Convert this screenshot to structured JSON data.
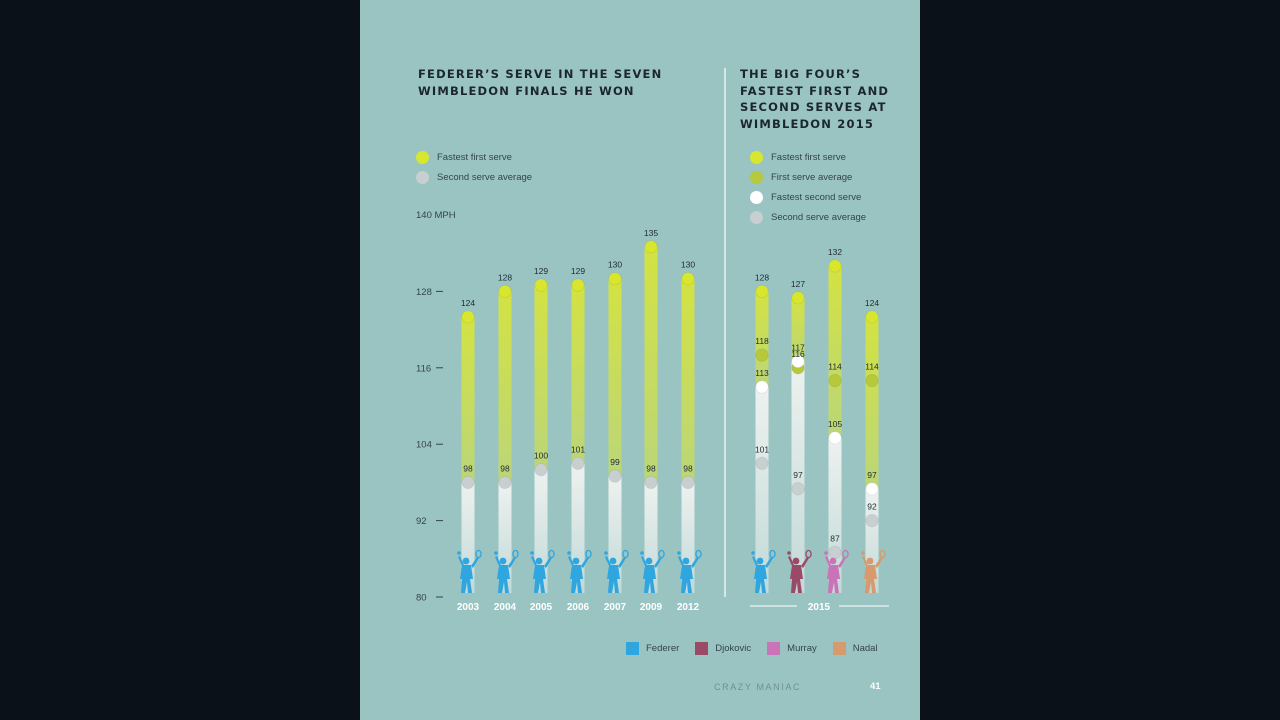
{
  "title_left": "FEDERER’S SERVE IN THE SEVEN\nWIMBLEDON FINALS HE WON",
  "title_right": "THE BIG FOUR’S\nFASTEST FIRST AND\nSECOND SERVES AT\nWIMBLEDON 2015",
  "legend_left": [
    {
      "label": "Fastest first serve",
      "color": "#d8e62e"
    },
    {
      "label": "Second serve average",
      "color": "#c8cfd0"
    }
  ],
  "legend_right": [
    {
      "label": "Fastest first serve",
      "color": "#d8e62e"
    },
    {
      "label": "First serve average",
      "color": "#b5c93a"
    },
    {
      "label": "Fastest second serve",
      "color": "#ffffff"
    },
    {
      "label": "Second serve average",
      "color": "#c8cfd0"
    }
  ],
  "unit_label": "140 MPH",
  "players": [
    {
      "name": "Federer",
      "color": "#2fa6e0"
    },
    {
      "name": "Djokovic",
      "color": "#9a4a66"
    },
    {
      "name": "Murray",
      "color": "#c874b6"
    },
    {
      "name": "Nadal",
      "color": "#d69a6e"
    }
  ],
  "footer": {
    "brand": "CRAZY MANIAC",
    "page": "41"
  },
  "chart_data": [
    {
      "type": "bar",
      "title": "FEDERER’S SERVE IN THE SEVEN WIMBLEDON FINALS HE WON",
      "ylabel": "140 MPH",
      "ylim": [
        80,
        140
      ],
      "yticks": [
        80,
        92,
        104,
        116,
        128
      ],
      "categories": [
        "2003",
        "2004",
        "2005",
        "2006",
        "2007",
        "2009",
        "2012"
      ],
      "series": [
        {
          "name": "Fastest first serve",
          "values": [
            124,
            128,
            129,
            129,
            130,
            135,
            130
          ]
        },
        {
          "name": "Second serve average",
          "values": [
            98,
            98,
            100,
            101,
            99,
            98,
            98
          ]
        }
      ]
    },
    {
      "type": "bar",
      "title": "THE BIG FOUR’S FASTEST FIRST AND SECOND SERVES AT WIMBLEDON 2015",
      "ylim": [
        80,
        140
      ],
      "group_label": "2015",
      "categories": [
        "Federer",
        "Djokovic",
        "Murray",
        "Nadal"
      ],
      "series": [
        {
          "name": "Fastest first serve",
          "values": [
            128,
            127,
            132,
            124
          ]
        },
        {
          "name": "First serve average",
          "values": [
            118,
            116,
            114,
            114
          ]
        },
        {
          "name": "Fastest second serve",
          "values": [
            113,
            117,
            105,
            97
          ]
        },
        {
          "name": "Second serve average",
          "values": [
            101,
            97,
            87,
            92
          ]
        }
      ]
    }
  ]
}
